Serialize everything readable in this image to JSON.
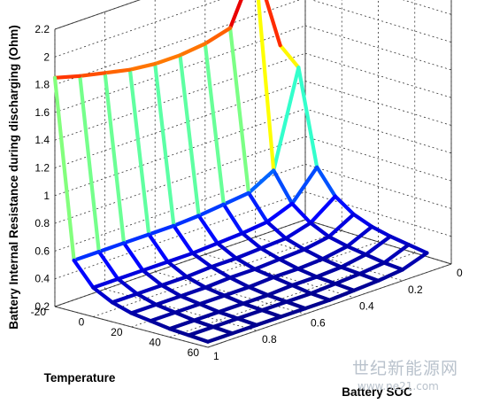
{
  "chart_data": {
    "type": "surface",
    "zlabel": "Battery Internal Resistance during discharging (Ohm)",
    "xlabel": "Temperature",
    "ylabel": "Battery SOC",
    "temperature": [
      -20,
      -10,
      0,
      10,
      20,
      30,
      40,
      50,
      60
    ],
    "soc": [
      1,
      0.9,
      0.8,
      0.7,
      0.6,
      0.5,
      0.4,
      0.3,
      0.2,
      0.1
    ],
    "z": [
      [
        1.85,
        1.8,
        1.76,
        1.72,
        1.7,
        1.7,
        1.72,
        1.77,
        2.17,
        1.52
      ],
      [
        0.57,
        0.57,
        0.57,
        0.57,
        0.57,
        0.58,
        0.6,
        0.62,
        0.72,
        1.4
      ],
      [
        0.41,
        0.41,
        0.41,
        0.41,
        0.41,
        0.42,
        0.43,
        0.45,
        0.52,
        0.72
      ],
      [
        0.34,
        0.34,
        0.34,
        0.34,
        0.35,
        0.35,
        0.36,
        0.37,
        0.42,
        0.55
      ],
      [
        0.3,
        0.3,
        0.3,
        0.3,
        0.31,
        0.31,
        0.32,
        0.33,
        0.36,
        0.46
      ],
      [
        0.28,
        0.28,
        0.28,
        0.28,
        0.28,
        0.29,
        0.29,
        0.3,
        0.33,
        0.41
      ],
      [
        0.26,
        0.26,
        0.26,
        0.26,
        0.26,
        0.27,
        0.27,
        0.28,
        0.31,
        0.38
      ],
      [
        0.25,
        0.25,
        0.25,
        0.25,
        0.25,
        0.25,
        0.26,
        0.27,
        0.29,
        0.36
      ],
      [
        0.24,
        0.24,
        0.24,
        0.24,
        0.24,
        0.24,
        0.25,
        0.26,
        0.28,
        0.34
      ]
    ],
    "zlim": [
      0.2,
      2.2
    ],
    "xlim": [
      -20,
      60
    ],
    "ylim": [
      0,
      1
    ],
    "zticks": [
      "0.2",
      "0.4",
      "0.6",
      "0.8",
      "1",
      "1.2",
      "1.4",
      "1.6",
      "1.8",
      "2",
      "2.2"
    ],
    "xticks": [
      "-20",
      "0",
      "20",
      "40",
      "60"
    ],
    "yticks": [
      "1",
      "0.8",
      "0.6",
      "0.4",
      "0.2",
      "0"
    ],
    "grid": true,
    "colormap": [
      "#00008f",
      "#0000ff",
      "#0080ff",
      "#00ffff",
      "#80ff80",
      "#ffff00",
      "#ff8000",
      "#ff0000",
      "#800000"
    ]
  },
  "watermark": {
    "brand": "世纪新能源网",
    "url": "www.ne21.com"
  }
}
